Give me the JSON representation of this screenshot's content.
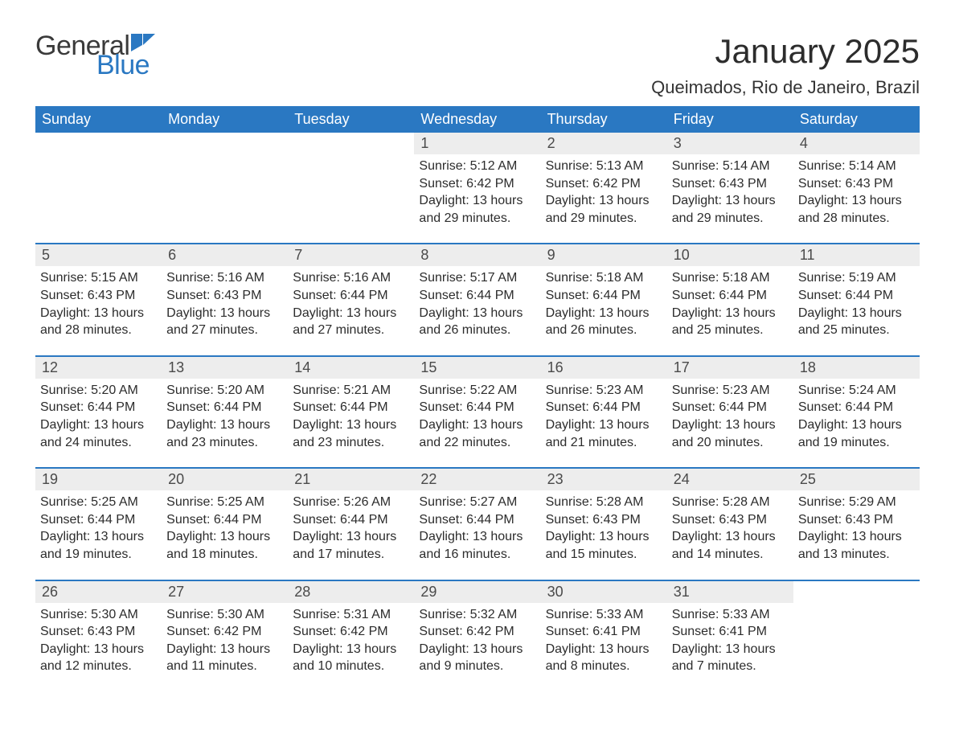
{
  "logo": {
    "general": "General",
    "blue": "Blue"
  },
  "title": "January 2025",
  "location": "Queimados, Rio de Janeiro, Brazil",
  "colors": {
    "header_bg": "#2a78c2",
    "header_text": "#ffffff",
    "daynum_bg": "#ededed",
    "daynum_text": "#4a4a4a",
    "body_text": "#2c2c2c",
    "divider": "#2a78c2",
    "logo_gray": "#3a3a3a",
    "logo_blue": "#2a78c2",
    "background": "#ffffff"
  },
  "typography": {
    "title_fontsize": 42,
    "location_fontsize": 22,
    "weekday_fontsize": 18,
    "daynum_fontsize": 18,
    "detail_fontsize": 16
  },
  "weekdays": [
    "Sunday",
    "Monday",
    "Tuesday",
    "Wednesday",
    "Thursday",
    "Friday",
    "Saturday"
  ],
  "weeks": [
    [
      null,
      null,
      null,
      {
        "day": "1",
        "sunrise": "Sunrise: 5:12 AM",
        "sunset": "Sunset: 6:42 PM",
        "daylight": "Daylight: 13 hours and 29 minutes."
      },
      {
        "day": "2",
        "sunrise": "Sunrise: 5:13 AM",
        "sunset": "Sunset: 6:42 PM",
        "daylight": "Daylight: 13 hours and 29 minutes."
      },
      {
        "day": "3",
        "sunrise": "Sunrise: 5:14 AM",
        "sunset": "Sunset: 6:43 PM",
        "daylight": "Daylight: 13 hours and 29 minutes."
      },
      {
        "day": "4",
        "sunrise": "Sunrise: 5:14 AM",
        "sunset": "Sunset: 6:43 PM",
        "daylight": "Daylight: 13 hours and 28 minutes."
      }
    ],
    [
      {
        "day": "5",
        "sunrise": "Sunrise: 5:15 AM",
        "sunset": "Sunset: 6:43 PM",
        "daylight": "Daylight: 13 hours and 28 minutes."
      },
      {
        "day": "6",
        "sunrise": "Sunrise: 5:16 AM",
        "sunset": "Sunset: 6:43 PM",
        "daylight": "Daylight: 13 hours and 27 minutes."
      },
      {
        "day": "7",
        "sunrise": "Sunrise: 5:16 AM",
        "sunset": "Sunset: 6:44 PM",
        "daylight": "Daylight: 13 hours and 27 minutes."
      },
      {
        "day": "8",
        "sunrise": "Sunrise: 5:17 AM",
        "sunset": "Sunset: 6:44 PM",
        "daylight": "Daylight: 13 hours and 26 minutes."
      },
      {
        "day": "9",
        "sunrise": "Sunrise: 5:18 AM",
        "sunset": "Sunset: 6:44 PM",
        "daylight": "Daylight: 13 hours and 26 minutes."
      },
      {
        "day": "10",
        "sunrise": "Sunrise: 5:18 AM",
        "sunset": "Sunset: 6:44 PM",
        "daylight": "Daylight: 13 hours and 25 minutes."
      },
      {
        "day": "11",
        "sunrise": "Sunrise: 5:19 AM",
        "sunset": "Sunset: 6:44 PM",
        "daylight": "Daylight: 13 hours and 25 minutes."
      }
    ],
    [
      {
        "day": "12",
        "sunrise": "Sunrise: 5:20 AM",
        "sunset": "Sunset: 6:44 PM",
        "daylight": "Daylight: 13 hours and 24 minutes."
      },
      {
        "day": "13",
        "sunrise": "Sunrise: 5:20 AM",
        "sunset": "Sunset: 6:44 PM",
        "daylight": "Daylight: 13 hours and 23 minutes."
      },
      {
        "day": "14",
        "sunrise": "Sunrise: 5:21 AM",
        "sunset": "Sunset: 6:44 PM",
        "daylight": "Daylight: 13 hours and 23 minutes."
      },
      {
        "day": "15",
        "sunrise": "Sunrise: 5:22 AM",
        "sunset": "Sunset: 6:44 PM",
        "daylight": "Daylight: 13 hours and 22 minutes."
      },
      {
        "day": "16",
        "sunrise": "Sunrise: 5:23 AM",
        "sunset": "Sunset: 6:44 PM",
        "daylight": "Daylight: 13 hours and 21 minutes."
      },
      {
        "day": "17",
        "sunrise": "Sunrise: 5:23 AM",
        "sunset": "Sunset: 6:44 PM",
        "daylight": "Daylight: 13 hours and 20 minutes."
      },
      {
        "day": "18",
        "sunrise": "Sunrise: 5:24 AM",
        "sunset": "Sunset: 6:44 PM",
        "daylight": "Daylight: 13 hours and 19 minutes."
      }
    ],
    [
      {
        "day": "19",
        "sunrise": "Sunrise: 5:25 AM",
        "sunset": "Sunset: 6:44 PM",
        "daylight": "Daylight: 13 hours and 19 minutes."
      },
      {
        "day": "20",
        "sunrise": "Sunrise: 5:25 AM",
        "sunset": "Sunset: 6:44 PM",
        "daylight": "Daylight: 13 hours and 18 minutes."
      },
      {
        "day": "21",
        "sunrise": "Sunrise: 5:26 AM",
        "sunset": "Sunset: 6:44 PM",
        "daylight": "Daylight: 13 hours and 17 minutes."
      },
      {
        "day": "22",
        "sunrise": "Sunrise: 5:27 AM",
        "sunset": "Sunset: 6:44 PM",
        "daylight": "Daylight: 13 hours and 16 minutes."
      },
      {
        "day": "23",
        "sunrise": "Sunrise: 5:28 AM",
        "sunset": "Sunset: 6:43 PM",
        "daylight": "Daylight: 13 hours and 15 minutes."
      },
      {
        "day": "24",
        "sunrise": "Sunrise: 5:28 AM",
        "sunset": "Sunset: 6:43 PM",
        "daylight": "Daylight: 13 hours and 14 minutes."
      },
      {
        "day": "25",
        "sunrise": "Sunrise: 5:29 AM",
        "sunset": "Sunset: 6:43 PM",
        "daylight": "Daylight: 13 hours and 13 minutes."
      }
    ],
    [
      {
        "day": "26",
        "sunrise": "Sunrise: 5:30 AM",
        "sunset": "Sunset: 6:43 PM",
        "daylight": "Daylight: 13 hours and 12 minutes."
      },
      {
        "day": "27",
        "sunrise": "Sunrise: 5:30 AM",
        "sunset": "Sunset: 6:42 PM",
        "daylight": "Daylight: 13 hours and 11 minutes."
      },
      {
        "day": "28",
        "sunrise": "Sunrise: 5:31 AM",
        "sunset": "Sunset: 6:42 PM",
        "daylight": "Daylight: 13 hours and 10 minutes."
      },
      {
        "day": "29",
        "sunrise": "Sunrise: 5:32 AM",
        "sunset": "Sunset: 6:42 PM",
        "daylight": "Daylight: 13 hours and 9 minutes."
      },
      {
        "day": "30",
        "sunrise": "Sunrise: 5:33 AM",
        "sunset": "Sunset: 6:41 PM",
        "daylight": "Daylight: 13 hours and 8 minutes."
      },
      {
        "day": "31",
        "sunrise": "Sunrise: 5:33 AM",
        "sunset": "Sunset: 6:41 PM",
        "daylight": "Daylight: 13 hours and 7 minutes."
      },
      null
    ]
  ]
}
